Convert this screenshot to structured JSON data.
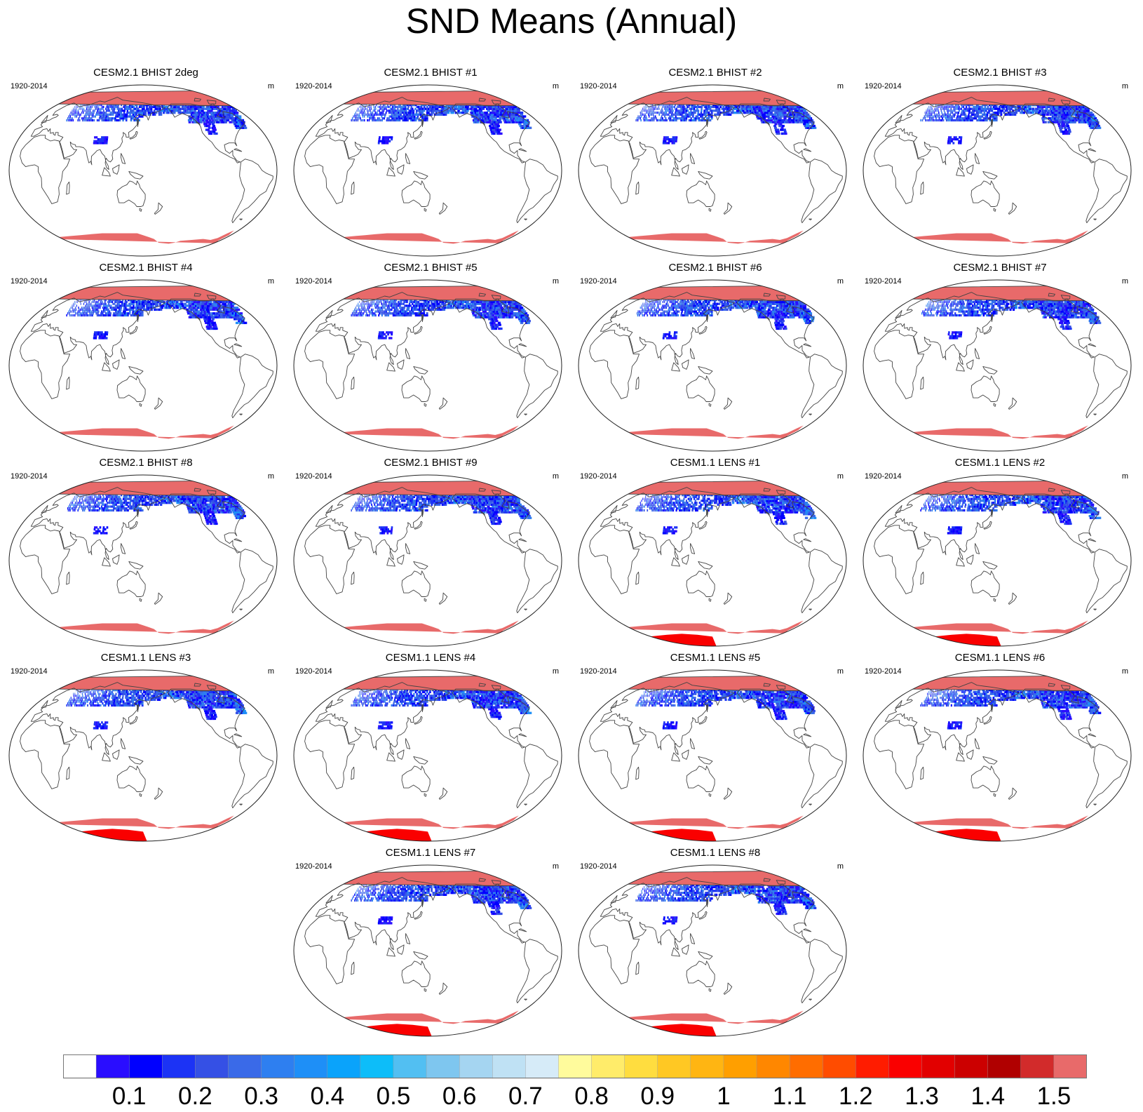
{
  "chart_data": {
    "type": "map-panels",
    "title": "SND Means (Annual)",
    "variable": "SND",
    "units": "m",
    "period": "1920-2014",
    "colorbar": {
      "levels": [
        0.1,
        0.2,
        0.3,
        0.4,
        0.5,
        0.6,
        0.7,
        0.8,
        0.9,
        1,
        1.1,
        1.2,
        1.3,
        1.4,
        1.5
      ],
      "tick_labels": [
        "0.1",
        "0.2",
        "0.3",
        "0.4",
        "0.5",
        "0.6",
        "0.7",
        "0.8",
        "0.9",
        "1",
        "1.1",
        "1.2",
        "1.3",
        "1.4",
        "1.5"
      ],
      "colors": [
        "#ffffff",
        "#2a0dff",
        "#0000ff",
        "#1c33f5",
        "#3550e5",
        "#3a6ae8",
        "#2e7ff0",
        "#1e8ff7",
        "#0aa3fb",
        "#0dbdf9",
        "#52bff2",
        "#7ec6ef",
        "#a5d5f1",
        "#bfe1f4",
        "#d6ebf8",
        "#fffb9c",
        "#ffec6a",
        "#ffdd3f",
        "#ffc823",
        "#ffb512",
        "#ff9f00",
        "#ff8700",
        "#ff6d00",
        "#ff4c00",
        "#ff1c00",
        "#fa0000",
        "#e20000",
        "#cc0000",
        "#b00000",
        "#d22b2b",
        "#e86a6a"
      ]
    },
    "panels": [
      {
        "title": "CESM2.1 BHIST 2deg",
        "period": "1920-2014",
        "units": "m",
        "antarctic_peak": false
      },
      {
        "title": "CESM2.1 BHIST #1",
        "period": "1920-2014",
        "units": "m",
        "antarctic_peak": false
      },
      {
        "title": "CESM2.1 BHIST #2",
        "period": "1920-2014",
        "units": "m",
        "antarctic_peak": false
      },
      {
        "title": "CESM2.1 BHIST #3",
        "period": "1920-2014",
        "units": "m",
        "antarctic_peak": false
      },
      {
        "title": "CESM2.1 BHIST #4",
        "period": "1920-2014",
        "units": "m",
        "antarctic_peak": false
      },
      {
        "title": "CESM2.1 BHIST #5",
        "period": "1920-2014",
        "units": "m",
        "antarctic_peak": false
      },
      {
        "title": "CESM2.1 BHIST #6",
        "period": "1920-2014",
        "units": "m",
        "antarctic_peak": false
      },
      {
        "title": "CESM2.1 BHIST #7",
        "period": "1920-2014",
        "units": "m",
        "antarctic_peak": false
      },
      {
        "title": "CESM2.1 BHIST #8",
        "period": "1920-2014",
        "units": "m",
        "antarctic_peak": false
      },
      {
        "title": "CESM2.1 BHIST #9",
        "period": "1920-2014",
        "units": "m",
        "antarctic_peak": false
      },
      {
        "title": "CESM1.1 LENS #1",
        "period": "1920-2014",
        "units": "m",
        "antarctic_peak": true
      },
      {
        "title": "CESM1.1 LENS #2",
        "period": "1920-2014",
        "units": "m",
        "antarctic_peak": true
      },
      {
        "title": "CESM1.1 LENS #3",
        "period": "1920-2014",
        "units": "m",
        "antarctic_peak": true
      },
      {
        "title": "CESM1.1 LENS #4",
        "period": "1920-2014",
        "units": "m",
        "antarctic_peak": true
      },
      {
        "title": "CESM1.1 LENS #5",
        "period": "1920-2014",
        "units": "m",
        "antarctic_peak": true
      },
      {
        "title": "CESM1.1 LENS #6",
        "period": "1920-2014",
        "units": "m",
        "antarctic_peak": true
      },
      {
        "title": "CESM1.1 LENS #7",
        "period": "1920-2014",
        "units": "m",
        "antarctic_peak": true
      },
      {
        "title": "CESM1.1 LENS #8",
        "period": "1920-2014",
        "units": "m",
        "antarctic_peak": true
      }
    ]
  }
}
